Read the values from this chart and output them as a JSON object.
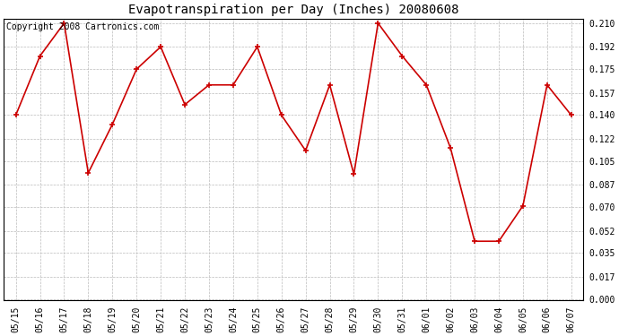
{
  "title": "Evapotranspiration per Day (Inches) 20080608",
  "copyright_text": "Copyright 2008 Cartronics.com",
  "x_labels": [
    "05/15",
    "05/16",
    "05/17",
    "05/18",
    "05/19",
    "05/20",
    "05/21",
    "05/22",
    "05/23",
    "05/24",
    "05/25",
    "05/26",
    "05/27",
    "05/28",
    "05/29",
    "05/30",
    "05/31",
    "06/01",
    "06/02",
    "06/03",
    "06/04",
    "06/05",
    "06/06",
    "06/07"
  ],
  "y_values": [
    0.14,
    0.185,
    0.21,
    0.096,
    0.133,
    0.175,
    0.192,
    0.148,
    0.163,
    0.163,
    0.192,
    0.14,
    0.113,
    0.163,
    0.095,
    0.21,
    0.185,
    0.163,
    0.115,
    0.044,
    0.044,
    0.071,
    0.163,
    0.14
  ],
  "line_color": "#cc0000",
  "marker": "+",
  "marker_size": 5,
  "marker_linewidth": 1.2,
  "line_width": 1.2,
  "y_ticks": [
    0.0,
    0.017,
    0.035,
    0.052,
    0.07,
    0.087,
    0.105,
    0.122,
    0.14,
    0.157,
    0.175,
    0.192,
    0.21
  ],
  "ylim": [
    -0.001,
    0.2135
  ],
  "background_color": "#ffffff",
  "grid_color": "#bbbbbb",
  "title_fontsize": 10,
  "tick_fontsize": 7,
  "copyright_fontsize": 7
}
